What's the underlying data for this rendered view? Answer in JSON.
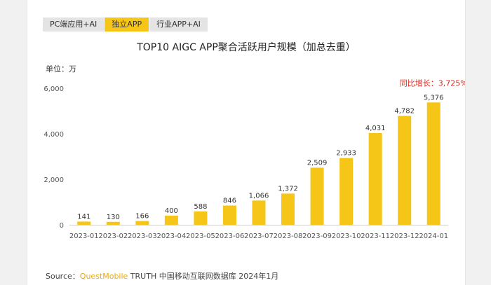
{
  "tabs": [
    {
      "label": "PC端应用+AI",
      "active": false
    },
    {
      "label": "独立APP",
      "active": true
    },
    {
      "label": "行业APP+AI",
      "active": false
    }
  ],
  "unit_label": "单位：万",
  "growth_label": "同比增长：3,725%",
  "source": {
    "prefix": "Source：",
    "brand": "QuestMobile",
    "rest": " TRUTH 中国移动互联网数据库 2024年1月"
  },
  "colors": {
    "bar": "#f5c518",
    "active_tab": "#f5c518",
    "growth": "#e0281e"
  },
  "chart_data": {
    "type": "bar",
    "title": "TOP10 AIGC APP聚合活跃用户规模（加总去重）",
    "categories": [
      "2023-01",
      "2023-02",
      "2023-03",
      "2023-04",
      "2023-05",
      "2023-06",
      "2023-07",
      "2023-08",
      "2023-09",
      "2023-10",
      "2023-11",
      "2023-12",
      "2024-01"
    ],
    "values": [
      141,
      130,
      166,
      400,
      588,
      846,
      1066,
      1372,
      2509,
      2933,
      4031,
      4782,
      5376
    ],
    "value_labels": [
      "141",
      "130",
      "166",
      "400",
      "588",
      "846",
      "1,066",
      "1,372",
      "2,509",
      "2,933",
      "4,031",
      "4,782",
      "5,376"
    ],
    "yticks": [
      0,
      2000,
      4000,
      6000
    ],
    "ytick_labels": [
      "0",
      "2,000",
      "4,000",
      "6,000"
    ],
    "ylim": [
      0,
      6000
    ],
    "grid": false,
    "legend": "none"
  }
}
